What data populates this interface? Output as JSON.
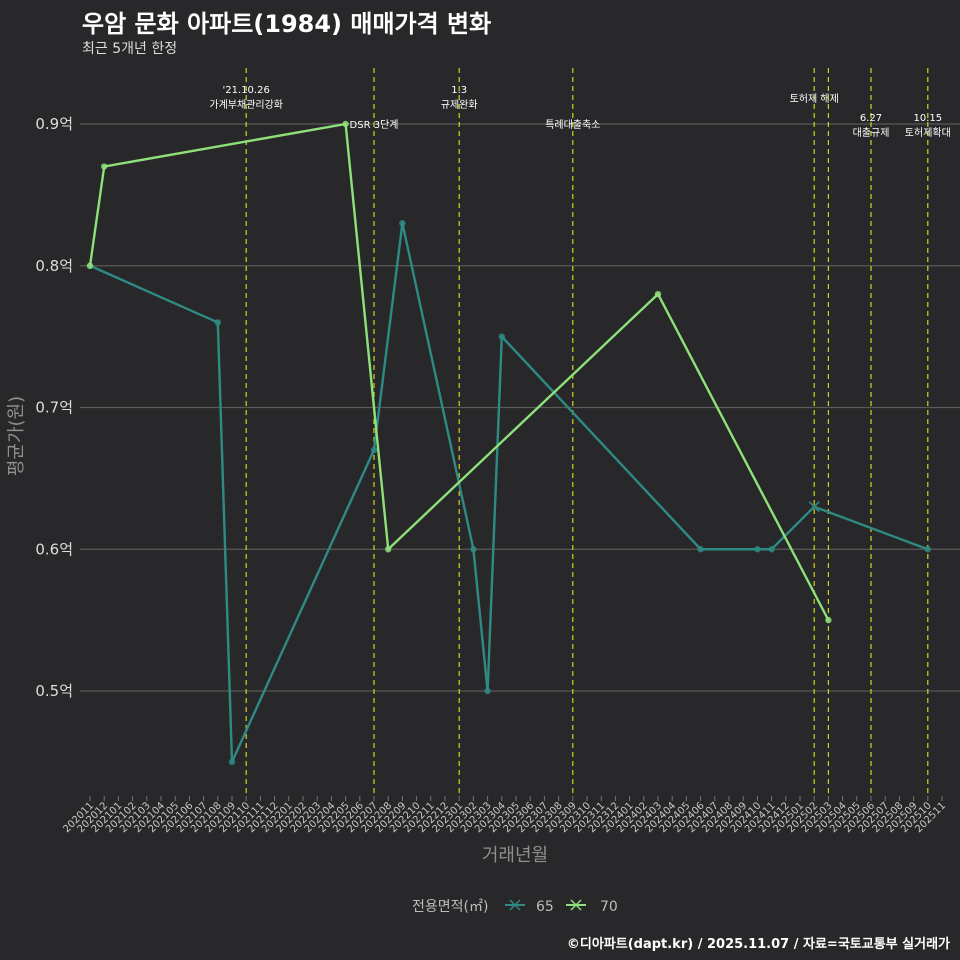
{
  "title": "우암 문화 아파트(1984) 매매가격 변화",
  "subtitle": "최근 5개년 한정",
  "caption": "©디아파트(dapt.kr) / 2025.11.07 / 자료=국토교통부 실거래가",
  "colors": {
    "background": "#282729",
    "series65": "#2e8b84",
    "series70": "#8ee07a",
    "eventline": "#d4d41e",
    "grid": "#5a5a5a"
  },
  "chart_data": {
    "type": "line",
    "title": "우암 문화 아파트(1984) 매매가격 변화",
    "xlabel": "거래년월",
    "ylabel": "평균가(원)",
    "ylim": [
      0.43,
      0.93
    ],
    "yticks": [
      0.5,
      0.6,
      0.7,
      0.8,
      0.9
    ],
    "ytick_labels": [
      "0.5억",
      "0.6억",
      "0.7억",
      "0.8억",
      "0.9억"
    ],
    "categories": [
      "202011",
      "202012",
      "202101",
      "202102",
      "202103",
      "202104",
      "202105",
      "202106",
      "202107",
      "202108",
      "202109",
      "202110",
      "202111",
      "202112",
      "202201",
      "202202",
      "202203",
      "202204",
      "202205",
      "202206",
      "202207",
      "202208",
      "202209",
      "202210",
      "202211",
      "202212",
      "202301",
      "202302",
      "202303",
      "202304",
      "202305",
      "202306",
      "202307",
      "202308",
      "202309",
      "202310",
      "202311",
      "202312",
      "202401",
      "202402",
      "202403",
      "202404",
      "202405",
      "202406",
      "202407",
      "202408",
      "202409",
      "202410",
      "202411",
      "202412",
      "202501",
      "202502",
      "202503",
      "202504",
      "202505",
      "202506",
      "202507",
      "202508",
      "202509",
      "202510",
      "202511"
    ],
    "legend_title": "전용면적(㎡)",
    "series": [
      {
        "name": "65",
        "points": [
          {
            "x": "202011",
            "y": 0.8
          },
          {
            "x": "202108",
            "y": 0.76
          },
          {
            "x": "202109",
            "y": 0.45
          },
          {
            "x": "202207",
            "y": 0.67
          },
          {
            "x": "202209",
            "y": 0.83
          },
          {
            "x": "202302",
            "y": 0.6
          },
          {
            "x": "202303",
            "y": 0.5
          },
          {
            "x": "202304",
            "y": 0.75
          },
          {
            "x": "202406",
            "y": 0.6
          },
          {
            "x": "202410",
            "y": 0.6
          },
          {
            "x": "202411",
            "y": 0.6
          },
          {
            "x": "202502",
            "y": 0.63
          },
          {
            "x": "202510",
            "y": 0.6
          }
        ]
      },
      {
        "name": "70",
        "points": [
          {
            "x": "202011",
            "y": 0.8
          },
          {
            "x": "202012",
            "y": 0.87
          },
          {
            "x": "202205",
            "y": 0.9
          },
          {
            "x": "202208",
            "y": 0.6
          },
          {
            "x": "202403",
            "y": 0.78
          },
          {
            "x": "202503",
            "y": 0.55
          }
        ]
      }
    ],
    "events": [
      {
        "x": "202110",
        "label": "'21.10.26\n가계부채관리강화",
        "level": 1
      },
      {
        "x": "202207",
        "label": "DSR 3단계",
        "level": 3
      },
      {
        "x": "202301",
        "label": "1.3\n규제완화",
        "level": 1
      },
      {
        "x": "202309",
        "label": "특례대출축소",
        "level": 3
      },
      {
        "x": "202502",
        "label": "토허제 해제",
        "level": 2
      },
      {
        "x": "202503",
        "label": "",
        "level": 0
      },
      {
        "x": "202506",
        "label": "6.27\n대출규제",
        "level": 4
      },
      {
        "x": "202510",
        "label": "10.15\n토허제확대",
        "level": 4
      }
    ]
  }
}
